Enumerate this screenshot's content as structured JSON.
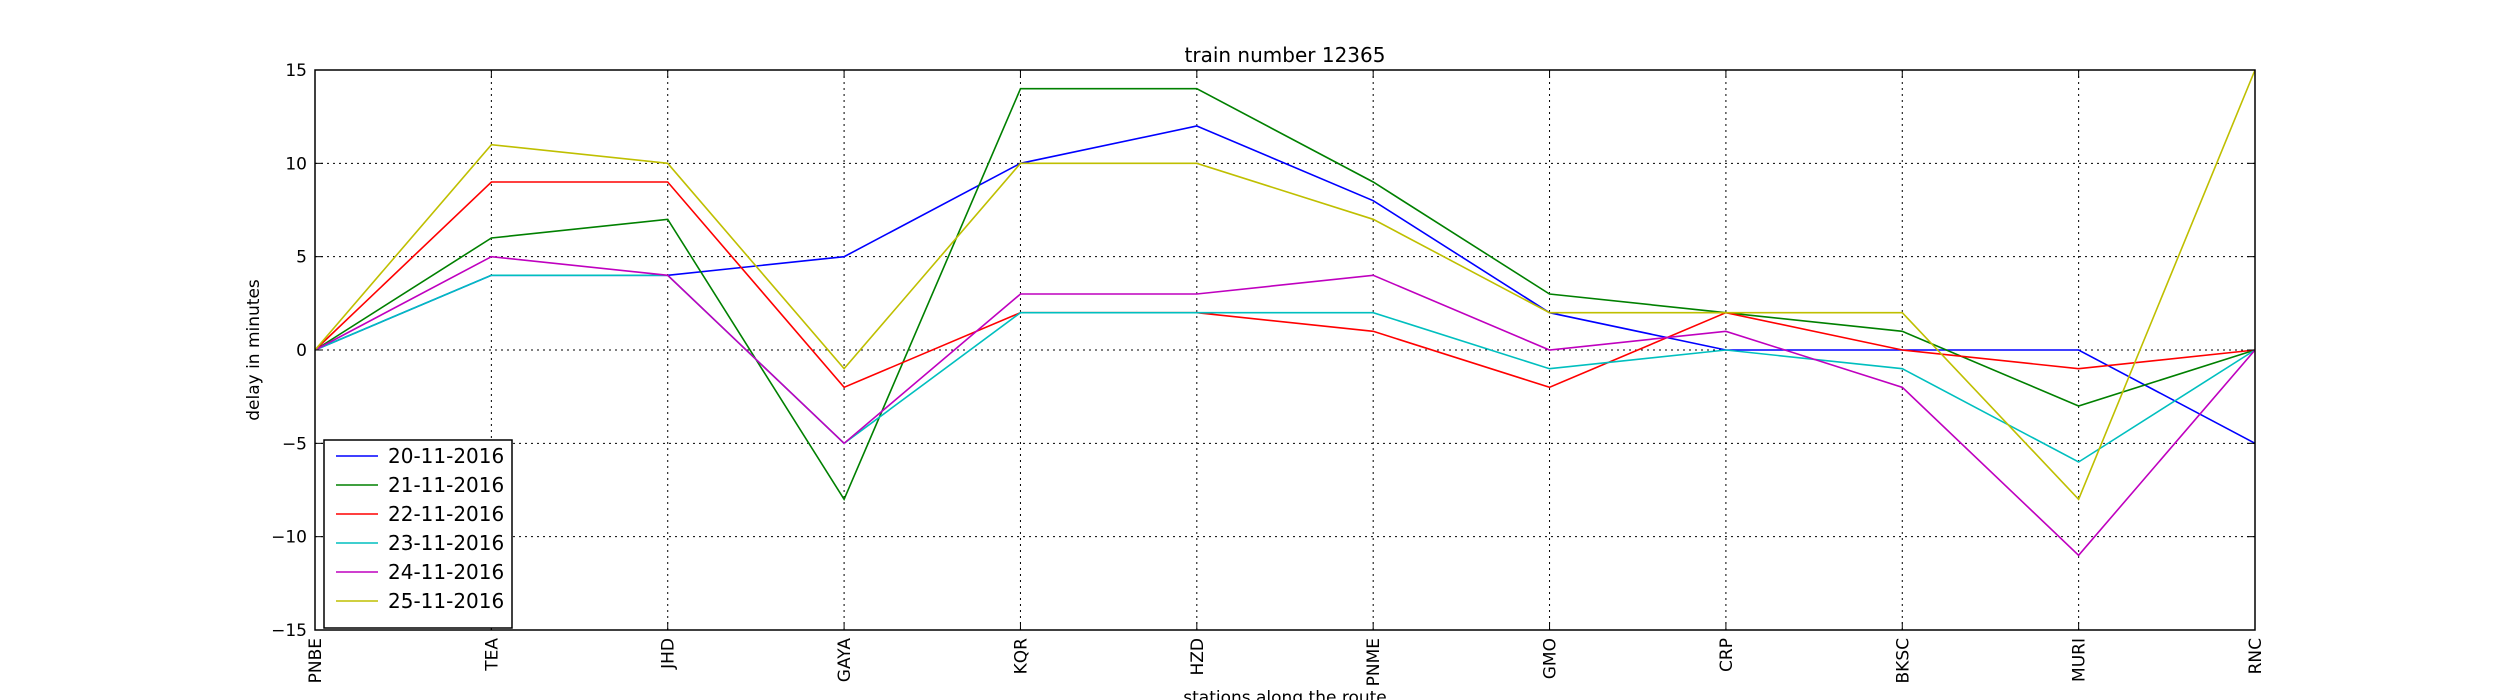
{
  "chart_data": {
    "type": "line",
    "title": "train number 12365",
    "xlabel": "stations along the route",
    "ylabel": "delay in minutes",
    "categories": [
      "PNBE",
      "TEA",
      "JHD",
      "GAYA",
      "KQR",
      "HZD",
      "PNME",
      "GMO",
      "CRP",
      "BKSC",
      "MURI",
      "RNC"
    ],
    "ylim": [
      -15,
      15
    ],
    "yticks": [
      -15,
      -10,
      -5,
      0,
      5,
      10,
      15
    ],
    "ytick_labels": [
      "−15",
      "−10",
      "−5",
      "0",
      "5",
      "10",
      "15"
    ],
    "grid": true,
    "legend_position": "lower-left",
    "series": [
      {
        "name": "20-11-2016",
        "color": "#0000ff",
        "values": [
          0,
          4,
          4,
          5,
          10,
          12,
          8,
          2,
          0,
          0,
          0,
          -5
        ]
      },
      {
        "name": "21-11-2016",
        "color": "#008000",
        "values": [
          0,
          6,
          7,
          -8,
          14,
          14,
          9,
          3,
          2,
          1,
          -3,
          0
        ]
      },
      {
        "name": "22-11-2016",
        "color": "#ff0000",
        "values": [
          0,
          9,
          9,
          -2,
          2,
          2,
          1,
          -2,
          2,
          0,
          -1,
          0
        ]
      },
      {
        "name": "23-11-2016",
        "color": "#00bfbf",
        "values": [
          0,
          4,
          4,
          -5,
          2,
          2,
          2,
          -1,
          0,
          -1,
          -6,
          0
        ]
      },
      {
        "name": "24-11-2016",
        "color": "#bf00bf",
        "values": [
          0,
          5,
          4,
          -5,
          3,
          3,
          4,
          0,
          1,
          -2,
          -11,
          0
        ]
      },
      {
        "name": "25-11-2016",
        "color": "#bfbf00",
        "values": [
          0,
          11,
          10,
          -1,
          10,
          10,
          7,
          2,
          2,
          2,
          -8,
          15
        ]
      }
    ]
  }
}
